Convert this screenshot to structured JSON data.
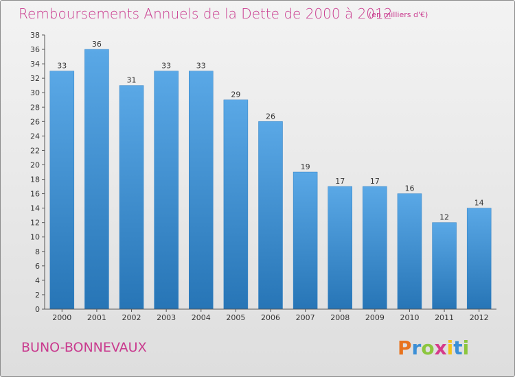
{
  "chart_data": {
    "type": "bar",
    "title": "Remboursements Annuels de la Dette de 2000 à 2012",
    "subtitle": "(en milliers d'€)",
    "xlabel": "",
    "ylabel": "",
    "categories": [
      "2000",
      "2001",
      "2002",
      "2003",
      "2004",
      "2005",
      "2006",
      "2007",
      "2008",
      "2009",
      "2010",
      "2011",
      "2012"
    ],
    "values": [
      33,
      36,
      31,
      33,
      33,
      29,
      26,
      19,
      17,
      17,
      16,
      12,
      14
    ],
    "ylim": [
      0,
      38
    ],
    "yticks": [
      0,
      2,
      4,
      6,
      8,
      10,
      12,
      14,
      16,
      18,
      20,
      22,
      24,
      26,
      28,
      30,
      32,
      34,
      36,
      38
    ],
    "grid": false,
    "legend": "none",
    "colors": {
      "bar_top": "#5aa8e6",
      "bar_bottom": "#2775b6",
      "title": "#c93a8e"
    }
  },
  "footer": {
    "commune": "BUNO-BONNEVAUX",
    "logo_text": "Proxiti"
  }
}
